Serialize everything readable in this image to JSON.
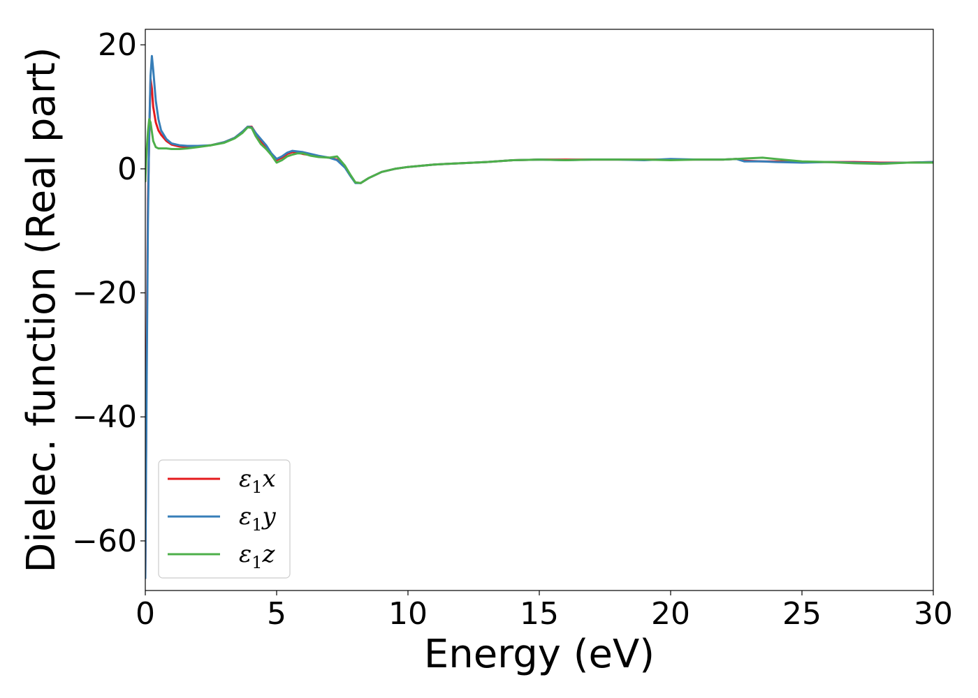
{
  "chart_data": {
    "type": "line",
    "xlabel": "Energy (eV)",
    "ylabel": "Dielec. function (Real part)",
    "xlim": [
      0,
      30
    ],
    "ylim": [
      -68,
      22.5
    ],
    "xticks": [
      0,
      5,
      10,
      15,
      20,
      25,
      30
    ],
    "yticks": [
      -60,
      -40,
      -20,
      0,
      20
    ],
    "xtick_labels": [
      "0",
      "5",
      "10",
      "15",
      "20",
      "25",
      "30"
    ],
    "ytick_labels": [
      "−60",
      "−40",
      "−20",
      "0",
      "20"
    ],
    "grid": false,
    "legend_position": "lower-left",
    "series": [
      {
        "name": "ε₁x",
        "legend": {
          "symbol": "ε",
          "sub": "1",
          "suffix": "x"
        },
        "color": "#e41a1c",
        "x": [
          0.0,
          0.05,
          0.1,
          0.15,
          0.2,
          0.25,
          0.3,
          0.4,
          0.5,
          0.6,
          0.8,
          1.0,
          1.3,
          1.6,
          2.0,
          2.5,
          3.0,
          3.4,
          3.7,
          3.9,
          4.05,
          4.2,
          4.4,
          4.6,
          4.8,
          5.0,
          5.2,
          5.4,
          5.6,
          5.8,
          6.0,
          6.3,
          6.6,
          7.0,
          7.3,
          7.6,
          7.8,
          8.0,
          8.2,
          8.5,
          9.0,
          9.5,
          10.0,
          11.0,
          12.0,
          13.0,
          14.0,
          15.0,
          16.0,
          17.0,
          18.0,
          19.0,
          20.0,
          21.0,
          22.0,
          22.5,
          22.8,
          23.5,
          24.0,
          25.0,
          26.0,
          27.0,
          28.0,
          29.0,
          30.0
        ],
        "y": [
          -66,
          -30,
          -5,
          5,
          14.5,
          13,
          10,
          7.5,
          6.2,
          5.5,
          4.5,
          3.9,
          3.6,
          3.5,
          3.6,
          3.8,
          4.3,
          5.0,
          6.0,
          6.8,
          6.8,
          5.8,
          4.5,
          3.5,
          2.3,
          1.4,
          1.8,
          2.4,
          2.7,
          2.6,
          2.4,
          2.2,
          2.0,
          1.8,
          1.5,
          0.3,
          -1.0,
          -2.2,
          -2.3,
          -1.5,
          -0.5,
          0.0,
          0.3,
          0.7,
          0.9,
          1.1,
          1.4,
          1.5,
          1.5,
          1.5,
          1.5,
          1.5,
          1.5,
          1.5,
          1.5,
          1.6,
          1.3,
          1.2,
          1.2,
          1.1,
          1.1,
          1.1,
          1.0,
          1.0,
          1.1
        ]
      },
      {
        "name": "ε₁y",
        "legend": {
          "symbol": "ε",
          "sub": "1",
          "suffix": "y"
        },
        "color": "#377eb8",
        "x": [
          0.0,
          0.05,
          0.1,
          0.15,
          0.2,
          0.25,
          0.3,
          0.4,
          0.5,
          0.6,
          0.8,
          1.0,
          1.3,
          1.6,
          2.0,
          2.5,
          3.0,
          3.4,
          3.7,
          3.9,
          4.05,
          4.2,
          4.4,
          4.6,
          4.8,
          5.0,
          5.2,
          5.4,
          5.6,
          5.8,
          6.0,
          6.3,
          6.6,
          7.0,
          7.3,
          7.6,
          7.8,
          8.0,
          8.2,
          8.5,
          9.0,
          9.5,
          10.0,
          11.0,
          12.0,
          13.0,
          14.0,
          15.0,
          16.0,
          17.0,
          18.0,
          19.0,
          20.0,
          21.0,
          22.0,
          22.5,
          22.8,
          23.5,
          24.0,
          25.0,
          26.0,
          27.0,
          28.0,
          29.0,
          30.0
        ],
        "y": [
          -66,
          -35,
          -8,
          6,
          15,
          18.2,
          16,
          11,
          8,
          6.2,
          4.8,
          4.1,
          3.8,
          3.7,
          3.7,
          3.8,
          4.3,
          5.0,
          6.0,
          6.8,
          6.7,
          5.8,
          4.8,
          3.8,
          2.5,
          1.6,
          2.0,
          2.6,
          2.9,
          2.8,
          2.7,
          2.4,
          2.1,
          1.8,
          1.4,
          0.2,
          -1.1,
          -2.3,
          -2.3,
          -1.5,
          -0.5,
          0.0,
          0.3,
          0.7,
          0.9,
          1.1,
          1.4,
          1.5,
          1.4,
          1.5,
          1.5,
          1.4,
          1.6,
          1.5,
          1.5,
          1.6,
          1.2,
          1.2,
          1.1,
          1.0,
          1.1,
          1.0,
          0.9,
          1.0,
          1.1
        ]
      },
      {
        "name": "ε₁z",
        "legend": {
          "symbol": "ε",
          "sub": "1",
          "suffix": "z"
        },
        "color": "#4daf4a",
        "x": [
          0.0,
          0.05,
          0.1,
          0.15,
          0.2,
          0.25,
          0.3,
          0.4,
          0.5,
          0.6,
          0.8,
          1.0,
          1.3,
          1.6,
          2.0,
          2.5,
          3.0,
          3.4,
          3.7,
          3.9,
          4.05,
          4.2,
          4.4,
          4.6,
          4.8,
          5.0,
          5.2,
          5.4,
          5.6,
          5.8,
          6.0,
          6.3,
          6.6,
          7.0,
          7.3,
          7.6,
          7.8,
          8.0,
          8.2,
          8.5,
          9.0,
          9.5,
          10.0,
          11.0,
          12.0,
          13.0,
          14.0,
          15.0,
          16.0,
          17.0,
          18.0,
          19.0,
          20.0,
          21.0,
          22.0,
          22.5,
          23.0,
          23.5,
          24.0,
          25.0,
          26.0,
          27.0,
          28.0,
          29.0,
          30.0
        ],
        "y": [
          -2,
          3,
          6,
          8,
          7.5,
          6,
          4.5,
          3.5,
          3.3,
          3.3,
          3.3,
          3.2,
          3.2,
          3.3,
          3.5,
          3.8,
          4.2,
          4.9,
          5.8,
          6.7,
          6.6,
          5.3,
          4.0,
          3.2,
          2.2,
          1.0,
          1.4,
          2.0,
          2.3,
          2.5,
          2.5,
          2.1,
          1.9,
          1.8,
          2.0,
          0.5,
          -0.9,
          -2.2,
          -2.3,
          -1.5,
          -0.5,
          0.0,
          0.3,
          0.7,
          0.9,
          1.1,
          1.4,
          1.5,
          1.4,
          1.5,
          1.5,
          1.5,
          1.4,
          1.5,
          1.5,
          1.6,
          1.7,
          1.8,
          1.6,
          1.2,
          1.1,
          0.9,
          0.8,
          1.0,
          1.0
        ]
      }
    ]
  }
}
